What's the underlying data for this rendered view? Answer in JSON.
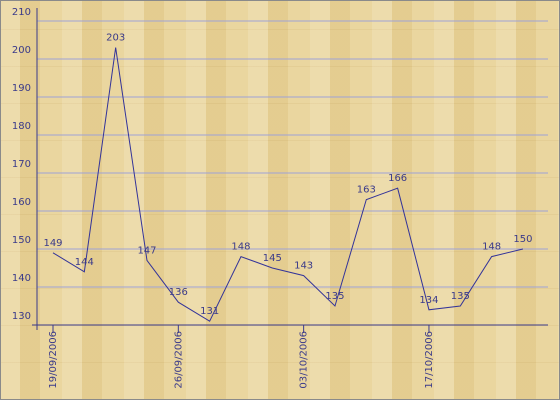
{
  "chart_data": {
    "type": "line",
    "categories": [
      "19/09/2006",
      null,
      null,
      null,
      "26/09/2006",
      null,
      null,
      null,
      "03/10/2006",
      null,
      null,
      null,
      "17/10/2006",
      null,
      null,
      null
    ],
    "series": [
      {
        "color": "#333399",
        "values": [
          149,
          144,
          203,
          147,
          136,
          131,
          148,
          145,
          143,
          135,
          163,
          166,
          134,
          135,
          148,
          150
        ]
      }
    ],
    "ylim": [
      130,
      210
    ],
    "yticks": [
      130,
      140,
      150,
      160,
      170,
      180,
      190,
      200,
      210
    ],
    "grid": true
  }
}
